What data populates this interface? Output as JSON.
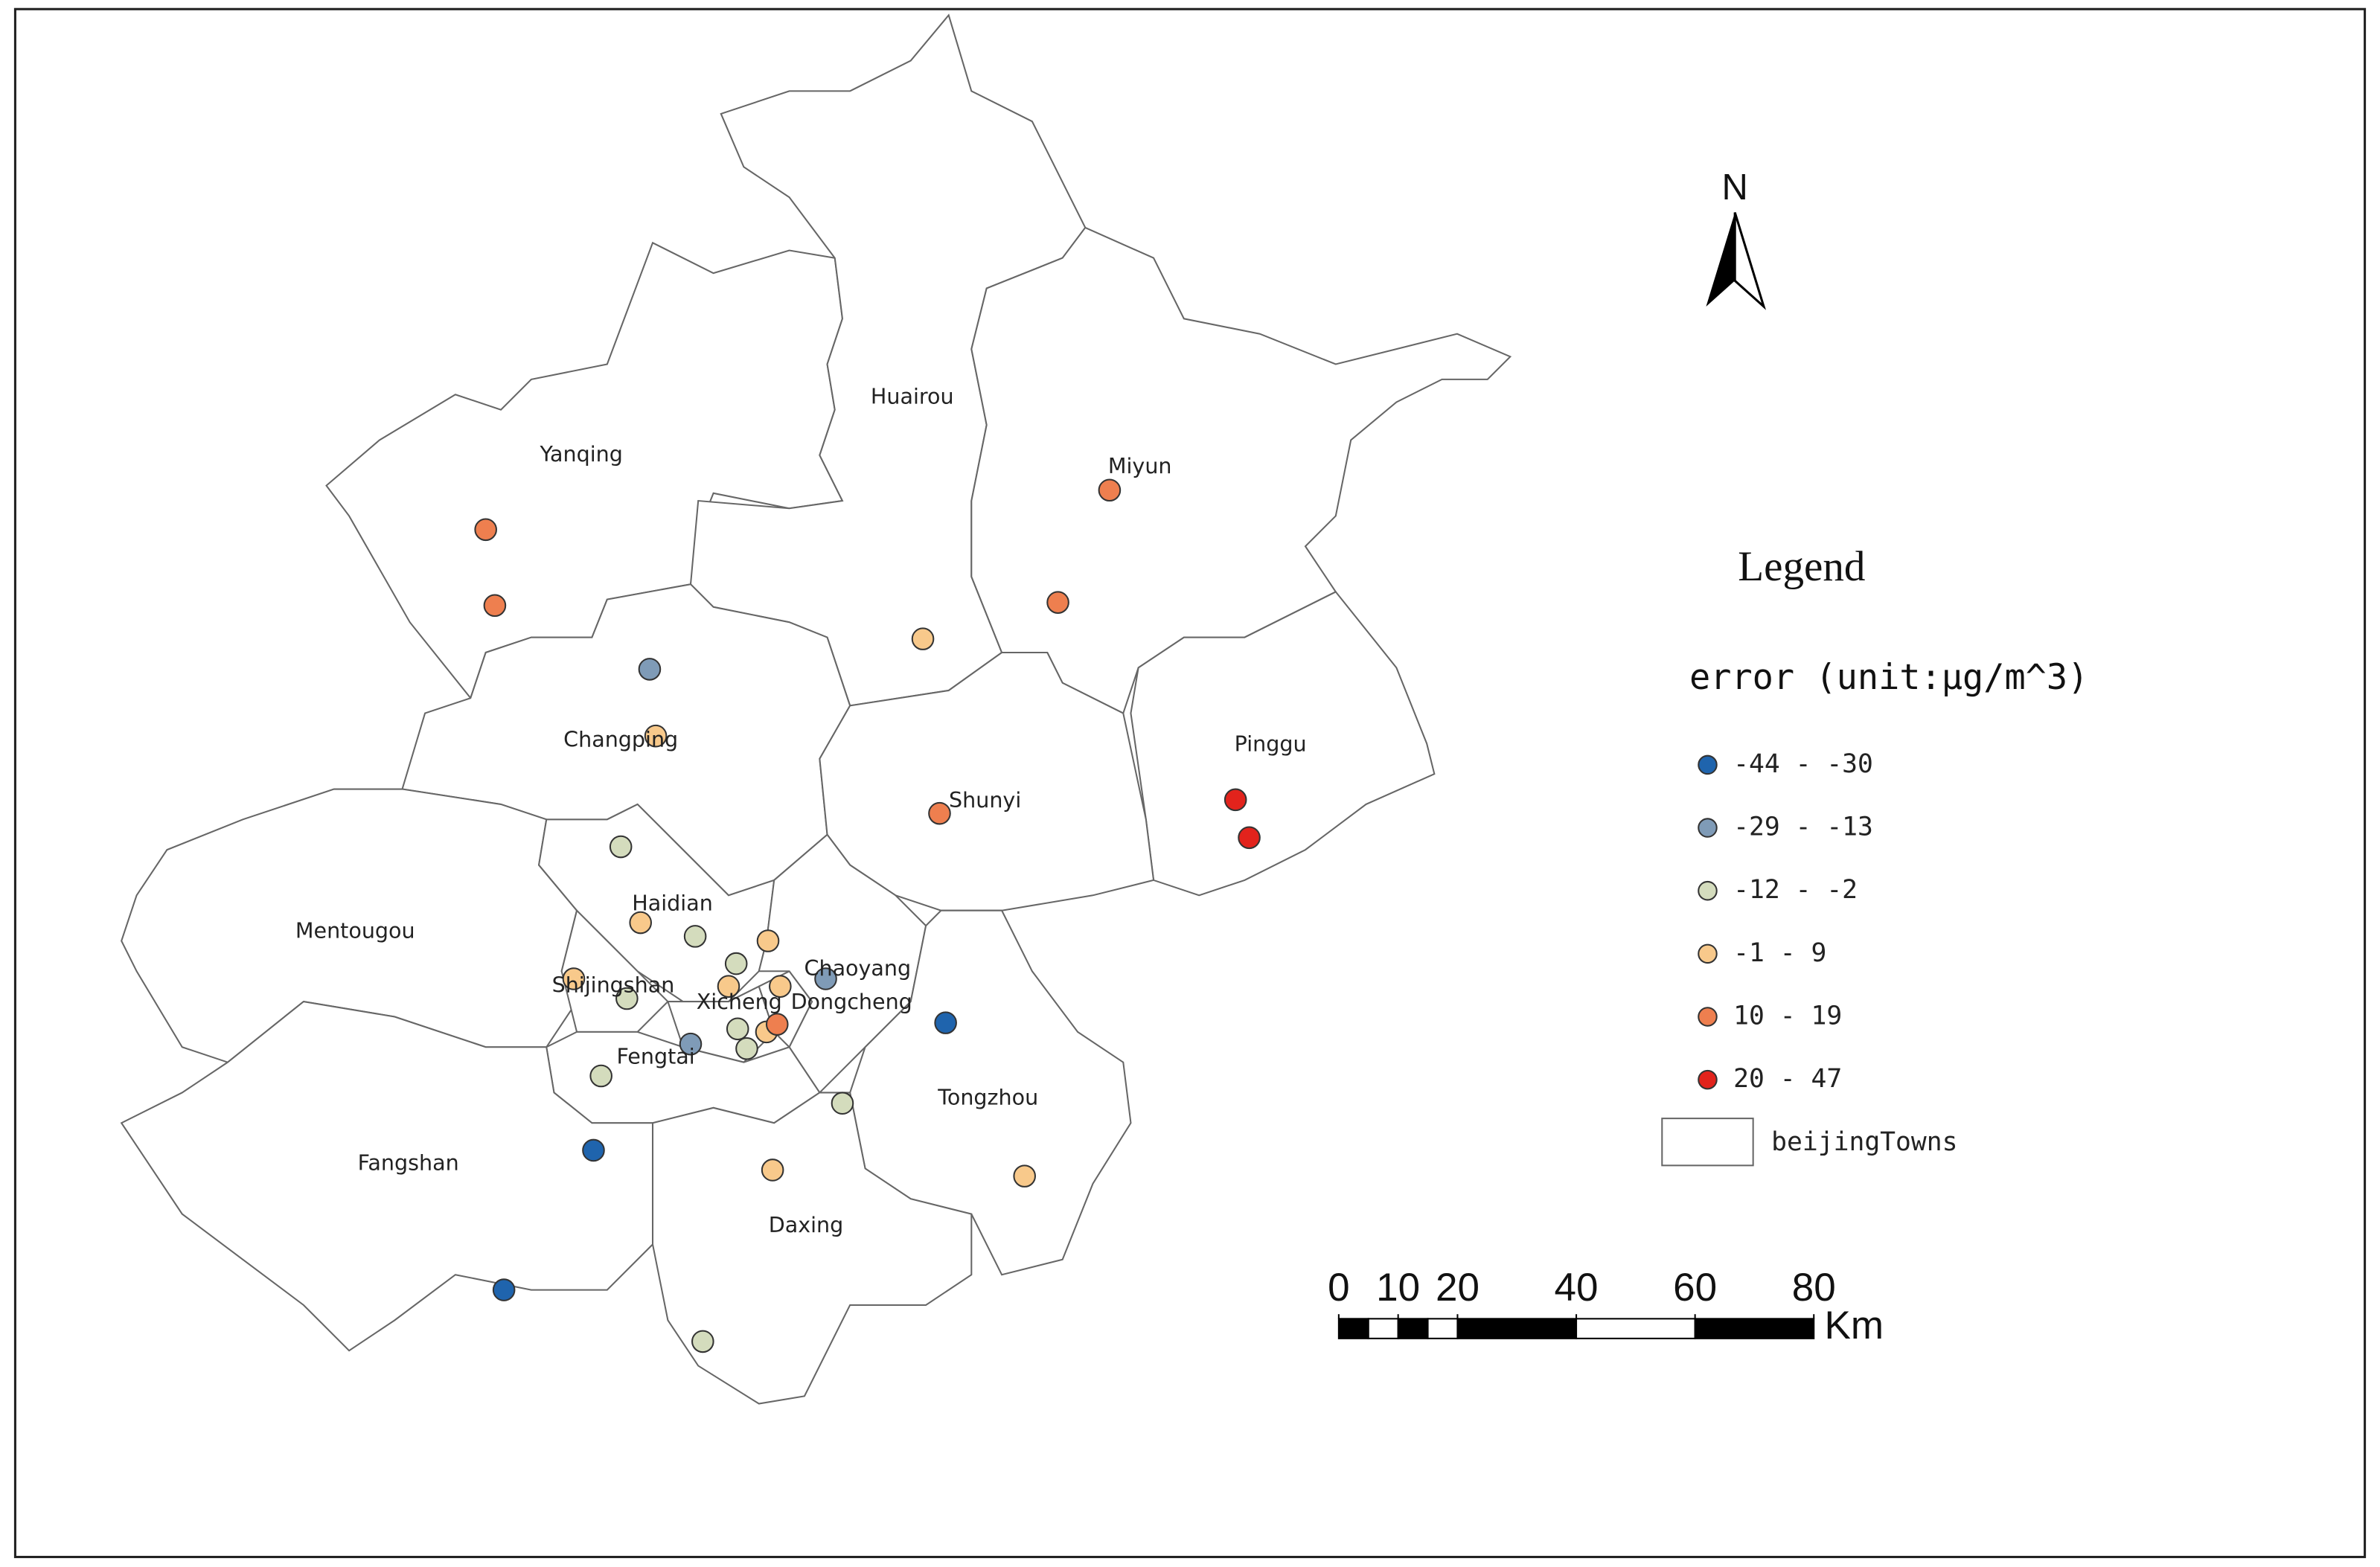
{
  "north": "N",
  "districts": [
    "Yanqing",
    "Huairou",
    "Miyun",
    "Pinggu",
    "Changping",
    "Shunyi",
    "Mentougou",
    "Haidian",
    "Shijingshan",
    "Xicheng",
    "Dongcheng",
    "Chaoyang",
    "Fengtai",
    "Tongzhou",
    "Fangshan",
    "Daxing"
  ],
  "legend": {
    "title": "Legend",
    "field": "error (unit:μg/m^3)",
    "classes": [
      {
        "label": "-44 - -30",
        "color": "#1f64ad"
      },
      {
        "label": "-29 - -13",
        "color": "#7f9bb7"
      },
      {
        "label": "-12 - -2",
        "color": "#d4dcbd"
      },
      {
        "label": "-1 - 9",
        "color": "#f8c98b"
      },
      {
        "label": "10 - 19",
        "color": "#ee7f4f"
      },
      {
        "label": "20 - 47",
        "color": "#e2231c"
      }
    ],
    "layer": "beijingTowns"
  },
  "scale_bar": {
    "ticks": [
      0,
      10,
      20,
      40,
      60,
      80
    ],
    "unit": "Km"
  }
}
